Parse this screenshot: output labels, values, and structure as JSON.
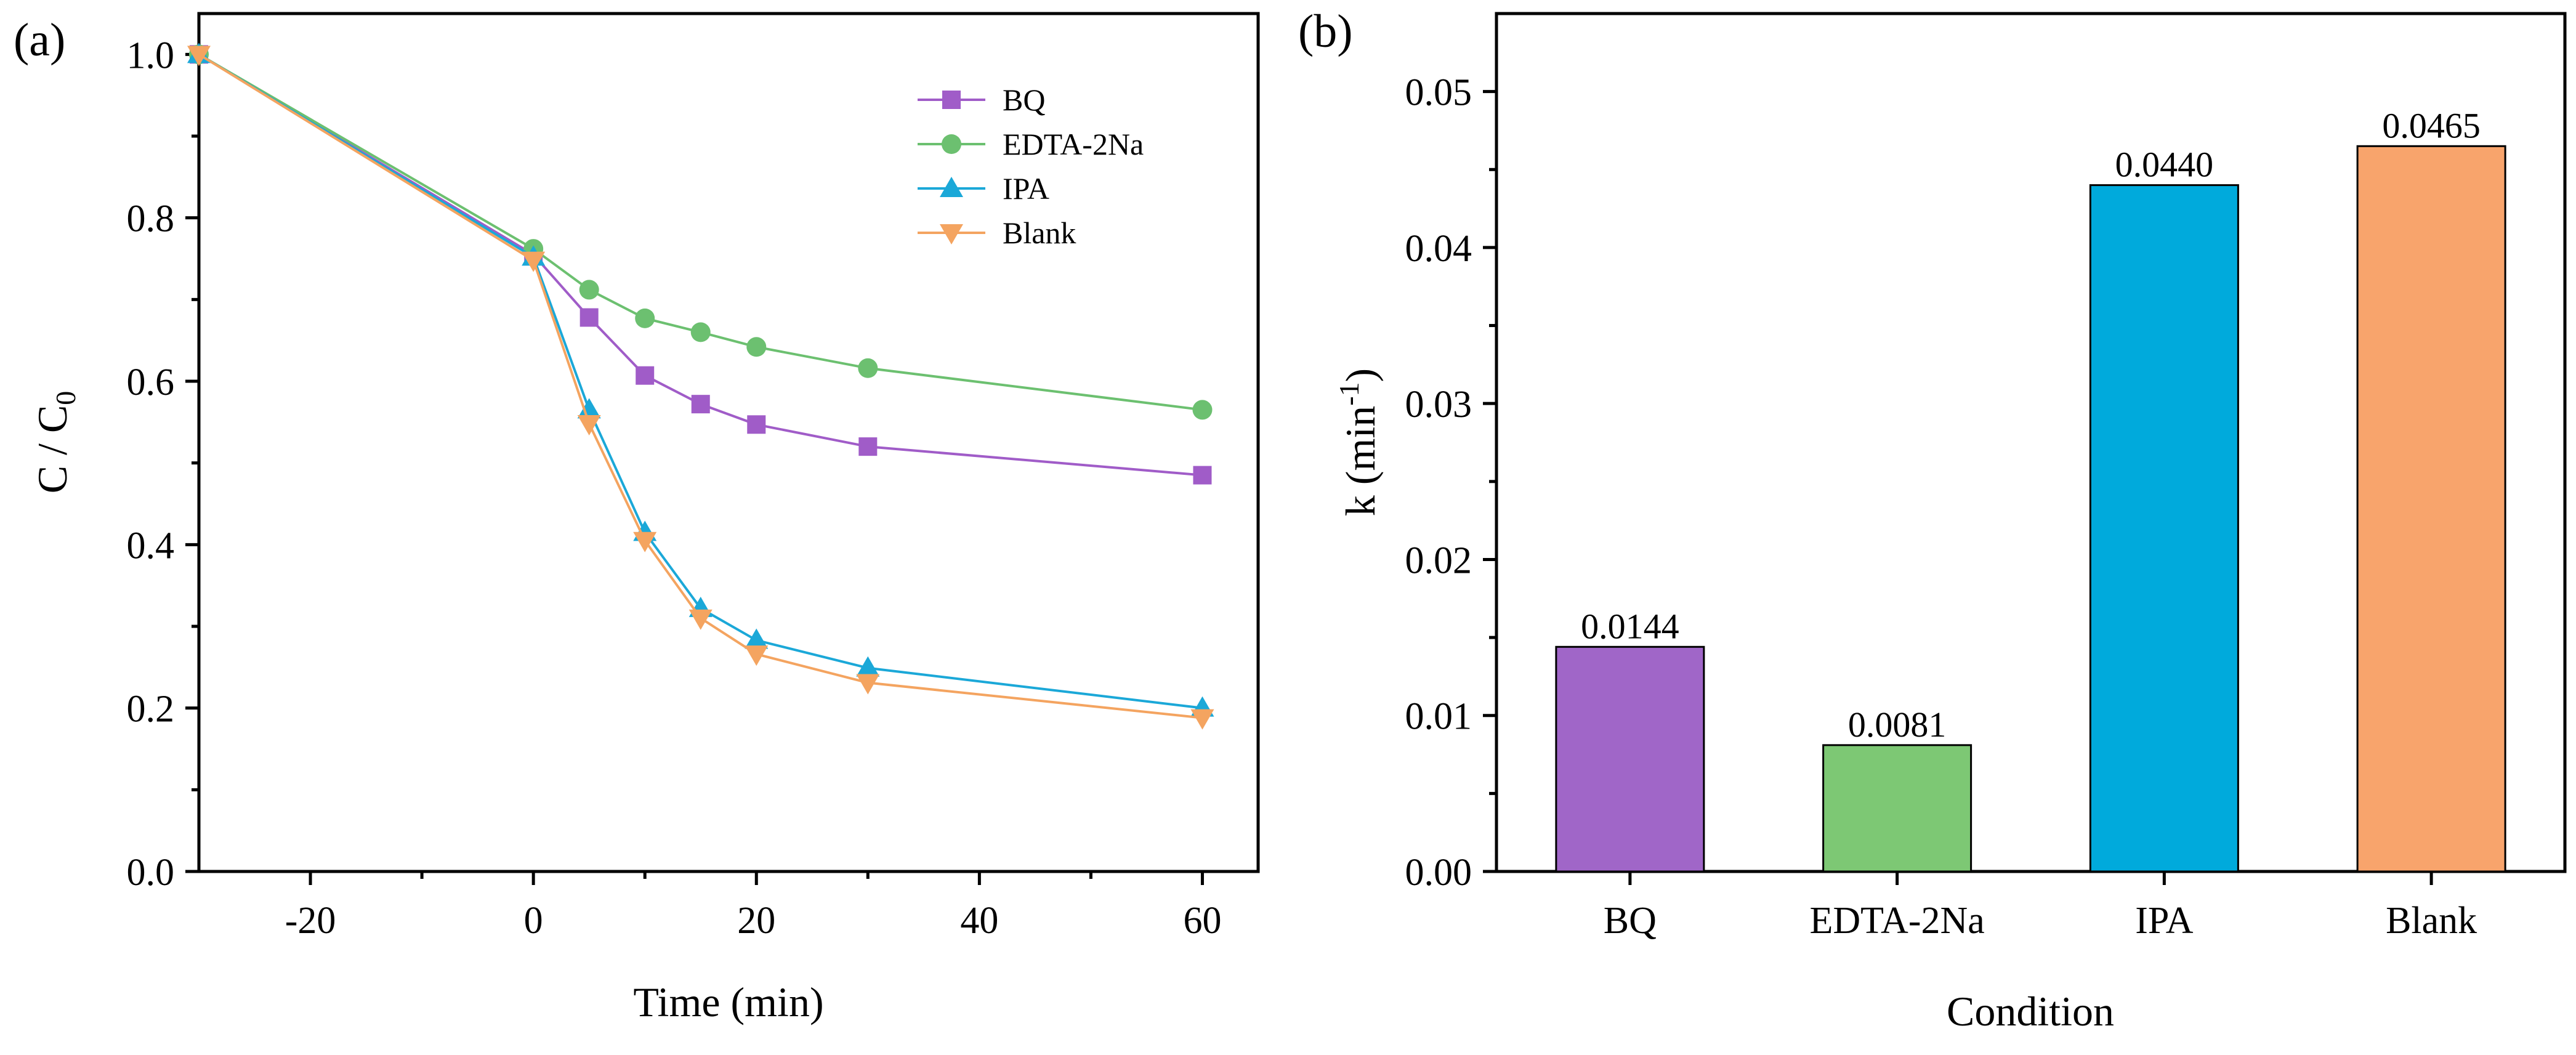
{
  "chart_data": [
    {
      "type": "line",
      "panel_label": "(a)",
      "xlabel": "Time (min)",
      "ylabel_main": "C / C",
      "ylabel_sub": "0",
      "xlim": [
        -30,
        65
      ],
      "ylim": [
        0,
        1.05
      ],
      "x_ticks": [
        -20,
        0,
        20,
        40,
        60
      ],
      "x_tick_labels": [
        "-20",
        "0",
        "20",
        "40",
        "60"
      ],
      "y_ticks": [
        0,
        0.2,
        0.4,
        0.6,
        0.8,
        1.0
      ],
      "y_tick_labels": [
        "0.0",
        "0.2",
        "0.4",
        "0.6",
        "0.8",
        "1.0"
      ],
      "x": [
        -30,
        0,
        5,
        10,
        15,
        20,
        30,
        60
      ],
      "legend_position": "top-right",
      "series": [
        {
          "name": "BQ",
          "marker": "square",
          "color": "#a05cc8",
          "values": [
            1.0,
            0.755,
            0.678,
            0.607,
            0.572,
            0.547,
            0.52,
            0.485
          ]
        },
        {
          "name": "EDTA-2Na",
          "marker": "circle",
          "color": "#6cc070",
          "values": [
            1.0,
            0.762,
            0.712,
            0.677,
            0.66,
            0.642,
            0.616,
            0.565
          ]
        },
        {
          "name": "IPA",
          "marker": "triangle-up",
          "color": "#1ba8d8",
          "values": [
            1.0,
            0.752,
            0.565,
            0.415,
            0.322,
            0.283,
            0.249,
            0.2
          ]
        },
        {
          "name": "Blank",
          "marker": "triangle-down",
          "color": "#f4a460",
          "values": [
            1.0,
            0.748,
            0.548,
            0.405,
            0.31,
            0.266,
            0.231,
            0.188
          ]
        }
      ]
    },
    {
      "type": "bar",
      "panel_label": "(b)",
      "xlabel": "Condition",
      "ylabel_main": "k (min",
      "ylabel_sup": "-1",
      "ylabel_end": ")",
      "ylim": [
        0,
        0.055
      ],
      "y_ticks": [
        0,
        0.01,
        0.02,
        0.03,
        0.04,
        0.05
      ],
      "y_tick_labels": [
        "0.00",
        "0.01",
        "0.02",
        "0.03",
        "0.04",
        "0.05"
      ],
      "categories": [
        "BQ",
        "EDTA-2Na",
        "IPA",
        "Blank"
      ],
      "values": [
        0.0144,
        0.0081,
        0.044,
        0.0465
      ],
      "value_labels": [
        "0.0144",
        "0.0081",
        "0.0440",
        "0.0465"
      ],
      "colors": [
        "#a066c8",
        "#7dc874",
        "#00aadc",
        "#f8a46c"
      ]
    }
  ]
}
